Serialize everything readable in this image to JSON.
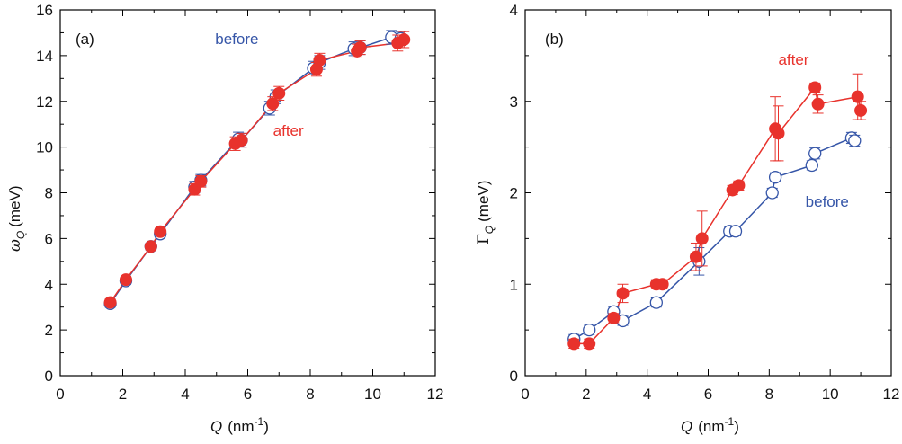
{
  "chart_data": [
    {
      "panel": "(a)",
      "type": "scatter",
      "xlabel": "Q (nm-1)",
      "ylabel": "ωQ (meV)",
      "xlim": [
        0,
        12
      ],
      "ylim": [
        0,
        16
      ],
      "xticks": [
        "0",
        "2",
        "4",
        "6",
        "8",
        "10",
        "12"
      ],
      "yticks": [
        "0",
        "2",
        "4",
        "6",
        "8",
        "10",
        "12",
        "14",
        "16"
      ],
      "series": [
        {
          "name": "before",
          "color": "#3656a8",
          "marker": "open-circle",
          "x": [
            1.6,
            2.1,
            2.9,
            3.2,
            4.3,
            4.5,
            5.7,
            5.8,
            6.7,
            6.9,
            8.1,
            8.3,
            9.4,
            9.6,
            10.6,
            10.9
          ],
          "y": [
            3.15,
            4.15,
            5.65,
            6.2,
            8.25,
            8.55,
            10.35,
            10.3,
            11.7,
            12.2,
            13.45,
            13.7,
            14.3,
            14.35,
            14.8,
            14.75
          ],
          "yerr": [
            0.15,
            0.15,
            0.15,
            0.15,
            0.25,
            0.25,
            0.3,
            0.3,
            0.3,
            0.3,
            0.3,
            0.3,
            0.3,
            0.3,
            0.3,
            0.3
          ]
        },
        {
          "name": "after",
          "color": "#e8322c",
          "marker": "filled-circle",
          "x": [
            1.6,
            2.1,
            2.9,
            3.2,
            4.3,
            4.5,
            5.6,
            5.8,
            6.8,
            7.0,
            8.2,
            8.3,
            9.5,
            9.6,
            10.8,
            11.0
          ],
          "y": [
            3.2,
            4.2,
            5.65,
            6.3,
            8.15,
            8.5,
            10.15,
            10.3,
            11.9,
            12.35,
            13.4,
            13.8,
            14.2,
            14.35,
            14.55,
            14.7
          ],
          "yerr": [
            0.15,
            0.15,
            0.15,
            0.15,
            0.25,
            0.25,
            0.3,
            0.3,
            0.3,
            0.3,
            0.3,
            0.3,
            0.3,
            0.3,
            0.35,
            0.35
          ]
        }
      ],
      "annotations": [
        {
          "text": "before",
          "color": "#3656a8",
          "x": 5.65,
          "y": 14.5
        },
        {
          "text": "after",
          "color": "#e8322c",
          "x": 7.3,
          "y": 10.5
        }
      ]
    },
    {
      "panel": "(b)",
      "type": "scatter",
      "xlabel": "Q (nm-1)",
      "ylabel": "ΓQ (meV)",
      "xlim": [
        0,
        12
      ],
      "ylim": [
        0,
        4
      ],
      "xticks": [
        "0",
        "2",
        "4",
        "6",
        "8",
        "10",
        "12"
      ],
      "yticks": [
        "0",
        "1",
        "2",
        "3",
        "4"
      ],
      "series": [
        {
          "name": "before",
          "color": "#3656a8",
          "marker": "open-circle",
          "x": [
            1.6,
            2.1,
            2.9,
            3.2,
            4.3,
            5.7,
            6.7,
            6.9,
            8.1,
            8.2,
            9.4,
            9.5,
            10.7,
            10.8
          ],
          "y": [
            0.4,
            0.5,
            0.7,
            0.6,
            0.8,
            1.25,
            1.58,
            1.58,
            2.0,
            2.17,
            2.3,
            2.43,
            2.6,
            2.57
          ],
          "yerr": [
            0.05,
            0.05,
            0.05,
            0.05,
            0.05,
            0.15,
            0.05,
            0.05,
            0.05,
            0.05,
            0.05,
            0.06,
            0.06,
            0.06
          ]
        },
        {
          "name": "after",
          "color": "#e8322c",
          "marker": "filled-circle",
          "x": [
            1.6,
            2.1,
            2.9,
            3.2,
            4.3,
            4.5,
            5.6,
            5.8,
            6.8,
            7.0,
            8.2,
            8.3,
            9.5,
            9.6,
            10.9,
            11.0
          ],
          "y": [
            0.35,
            0.35,
            0.63,
            0.9,
            1.0,
            1.0,
            1.3,
            1.5,
            2.03,
            2.08,
            2.7,
            2.65,
            3.15,
            2.97,
            3.05,
            2.9
          ],
          "yerr": [
            0.05,
            0.05,
            0.05,
            0.1,
            0.05,
            0.05,
            0.15,
            0.3,
            0.05,
            0.05,
            0.35,
            0.3,
            0.05,
            0.1,
            0.25,
            0.1
          ]
        }
      ],
      "annotations": [
        {
          "text": "after",
          "color": "#e8322c",
          "x": 8.8,
          "y": 3.4
        },
        {
          "text": "before",
          "color": "#3656a8",
          "x": 9.9,
          "y": 1.85
        }
      ]
    }
  ]
}
